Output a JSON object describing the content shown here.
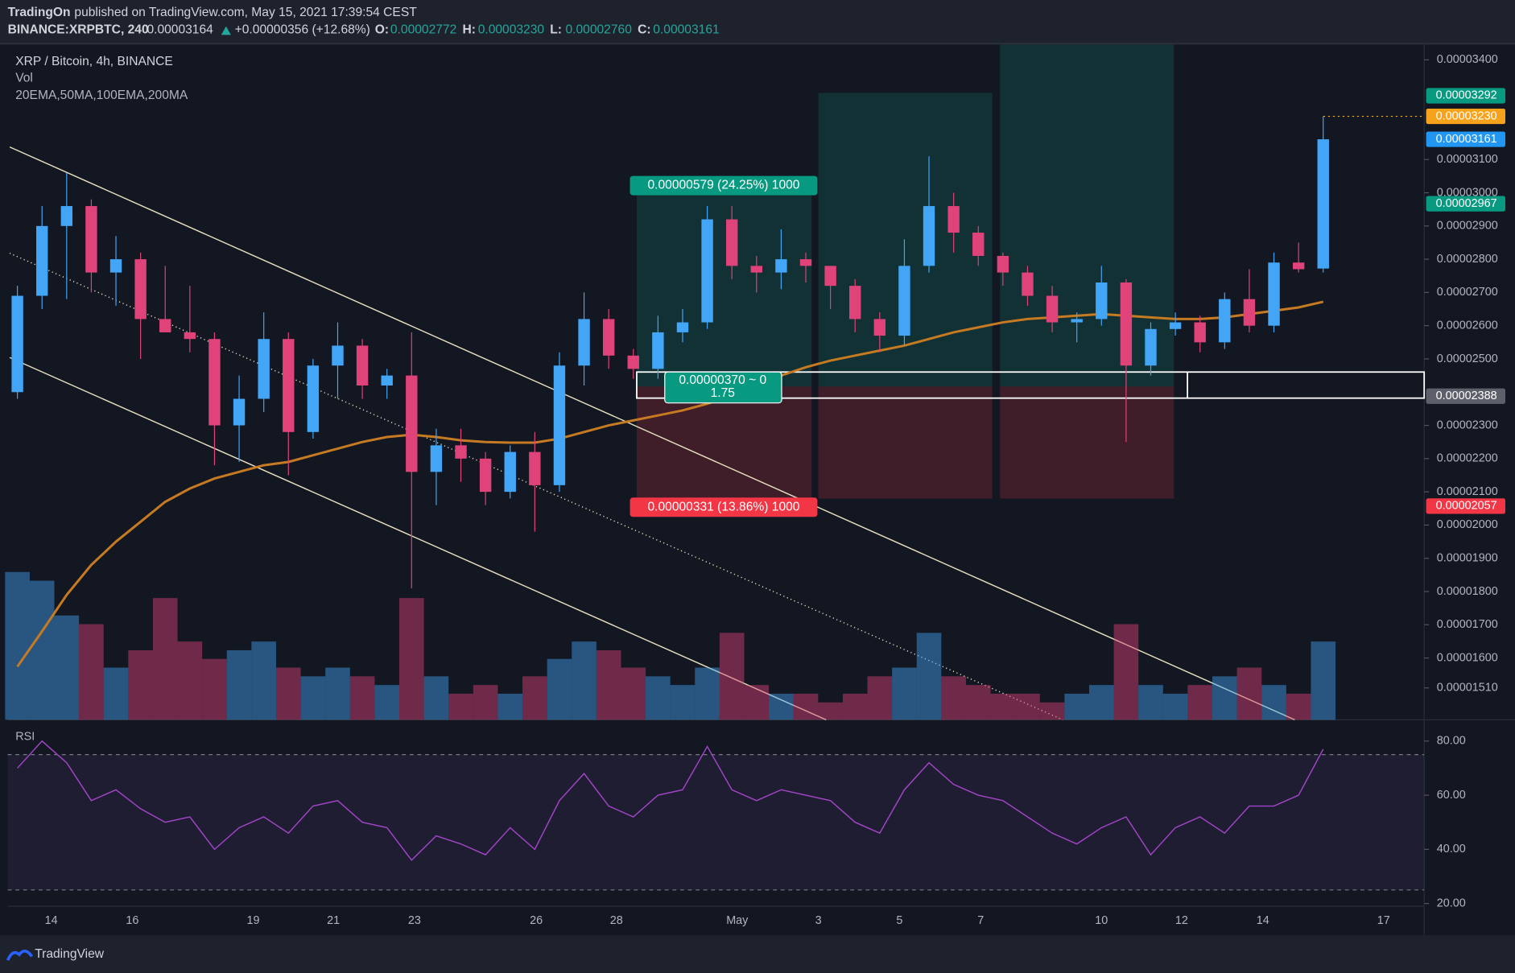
{
  "header": {
    "publisher": "TradingOn",
    "published": "published on TradingView.com, May 15, 2021 17:39:54 CEST",
    "symbol": "BINANCE:XRPBTC, 240",
    "last": "0.00003164",
    "change": "+0.00000356 (+12.68%)",
    "ohlc": [
      {
        "label": "O:",
        "value": "0.00002772"
      },
      {
        "label": "H:",
        "value": "0.00003230"
      },
      {
        "label": "L:",
        "value": "0.00002760"
      },
      {
        "label": "C:",
        "value": "0.00003161"
      }
    ]
  },
  "footer": "TradingView",
  "chart_data": {
    "type": "candlestick",
    "legend_lines": [
      "XRP / Bitcoin, 4h, BINANCE",
      "Vol",
      "20EMA,50MA,100EMA,200MA"
    ],
    "up_color": "#42a5f5",
    "down_color": "#e0427a",
    "ema_color": "#c67a22",
    "rsi_color": "#a445c8",
    "open": [
      2.4e-05,
      2.69e-05,
      2.9e-05,
      2.96e-05,
      2.76e-05,
      2.8e-05,
      2.62e-05,
      2.58e-05,
      2.56e-05,
      2.3e-05,
      2.38e-05,
      2.56e-05,
      2.28e-05,
      2.48e-05,
      2.54e-05,
      2.42e-05,
      2.45e-05,
      2.16e-05,
      2.24e-05,
      2.2e-05,
      2.1e-05,
      2.22e-05,
      2.12e-05,
      2.48e-05,
      2.62e-05,
      2.51e-05,
      2.47e-05,
      2.58e-05,
      2.61e-05,
      2.92e-05,
      2.78e-05,
      2.76e-05,
      2.8e-05,
      2.78e-05,
      2.72e-05,
      2.62e-05,
      2.57e-05,
      2.78e-05,
      2.96e-05,
      2.88e-05,
      2.81e-05,
      2.76e-05,
      2.69e-05,
      2.61e-05,
      2.62e-05,
      2.73e-05,
      2.48e-05,
      2.59e-05,
      2.61e-05,
      2.55e-05,
      2.68e-05,
      2.6e-05,
      2.79e-05,
      2.772e-05
    ],
    "high": [
      2.72e-05,
      2.96e-05,
      3.06e-05,
      2.98e-05,
      2.87e-05,
      2.82e-05,
      2.78e-05,
      2.72e-05,
      2.58e-05,
      2.45e-05,
      2.64e-05,
      2.58e-05,
      2.5e-05,
      2.61e-05,
      2.56e-05,
      2.47e-05,
      2.58e-05,
      2.29e-05,
      2.29e-05,
      2.22e-05,
      2.24e-05,
      2.28e-05,
      2.52e-05,
      2.7e-05,
      2.65e-05,
      2.53e-05,
      2.63e-05,
      2.65e-05,
      2.96e-05,
      2.96e-05,
      2.81e-05,
      2.89e-05,
      2.82e-05,
      2.78e-05,
      2.74e-05,
      2.64e-05,
      2.86e-05,
      3.11e-05,
      3e-05,
      2.9e-05,
      2.82e-05,
      2.78e-05,
      2.72e-05,
      2.64e-05,
      2.78e-05,
      2.74e-05,
      2.61e-05,
      2.64e-05,
      2.63e-05,
      2.7e-05,
      2.77e-05,
      2.82e-05,
      2.85e-05,
      3.23e-05
    ],
    "low": [
      2.38e-05,
      2.65e-05,
      2.68e-05,
      2.7e-05,
      2.66e-05,
      2.5e-05,
      2.58e-05,
      2.52e-05,
      2.18e-05,
      2.19e-05,
      2.34e-05,
      2.15e-05,
      2.26e-05,
      2.38e-05,
      2.38e-05,
      2.38e-05,
      1.81e-05,
      2.06e-05,
      2.13e-05,
      2.06e-05,
      2.08e-05,
      1.98e-05,
      2.1e-05,
      2.42e-05,
      2.47e-05,
      2.44e-05,
      2.44e-05,
      2.55e-05,
      2.59e-05,
      2.74e-05,
      2.7e-05,
      2.71e-05,
      2.73e-05,
      2.65e-05,
      2.58e-05,
      2.52e-05,
      2.54e-05,
      2.76e-05,
      2.82e-05,
      2.78e-05,
      2.72e-05,
      2.66e-05,
      2.58e-05,
      2.55e-05,
      2.6e-05,
      2.25e-05,
      2.45e-05,
      2.57e-05,
      2.52e-05,
      2.53e-05,
      2.58e-05,
      2.58e-05,
      2.76e-05,
      2.76e-05
    ],
    "close": [
      2.69e-05,
      2.9e-05,
      2.96e-05,
      2.76e-05,
      2.8e-05,
      2.62e-05,
      2.58e-05,
      2.56e-05,
      2.3e-05,
      2.38e-05,
      2.56e-05,
      2.28e-05,
      2.48e-05,
      2.54e-05,
      2.42e-05,
      2.45e-05,
      2.16e-05,
      2.24e-05,
      2.2e-05,
      2.1e-05,
      2.22e-05,
      2.12e-05,
      2.48e-05,
      2.62e-05,
      2.51e-05,
      2.47e-05,
      2.58e-05,
      2.61e-05,
      2.92e-05,
      2.78e-05,
      2.76e-05,
      2.8e-05,
      2.78e-05,
      2.72e-05,
      2.62e-05,
      2.57e-05,
      2.78e-05,
      2.96e-05,
      2.88e-05,
      2.81e-05,
      2.76e-05,
      2.69e-05,
      2.61e-05,
      2.62e-05,
      2.73e-05,
      2.48e-05,
      2.59e-05,
      2.61e-05,
      2.55e-05,
      2.68e-05,
      2.6e-05,
      2.79e-05,
      2.77e-05,
      3.161e-05
    ],
    "ema": [
      1.574e-05,
      1.68e-05,
      1.79e-05,
      1.88e-05,
      1.95e-05,
      2.01e-05,
      2.07e-05,
      2.11e-05,
      2.14e-05,
      2.16e-05,
      2.18e-05,
      2.19e-05,
      2.21e-05,
      2.23e-05,
      2.25e-05,
      2.265e-05,
      2.272e-05,
      2.265e-05,
      2.255e-05,
      2.25e-05,
      2.248e-05,
      2.248e-05,
      2.26e-05,
      2.28e-05,
      2.3e-05,
      2.315e-05,
      2.33e-05,
      2.345e-05,
      2.365e-05,
      2.39e-05,
      2.42e-05,
      2.45e-05,
      2.475e-05,
      2.495e-05,
      2.51e-05,
      2.525e-05,
      2.54e-05,
      2.56e-05,
      2.58e-05,
      2.595e-05,
      2.61e-05,
      2.62e-05,
      2.625e-05,
      2.63e-05,
      2.635e-05,
      2.63e-05,
      2.625e-05,
      2.62e-05,
      2.62e-05,
      2.625e-05,
      2.635e-05,
      2.645e-05,
      2.655e-05,
      2.672e-05
    ],
    "volume": [
      85,
      80,
      60,
      55,
      30,
      40,
      70,
      45,
      35,
      40,
      45,
      30,
      25,
      30,
      25,
      20,
      70,
      25,
      15,
      20,
      15,
      25,
      35,
      45,
      40,
      30,
      25,
      20,
      30,
      50,
      20,
      15,
      15,
      10,
      15,
      25,
      30,
      50,
      25,
      20,
      15,
      15,
      10,
      15,
      20,
      55,
      20,
      15,
      20,
      25,
      30,
      20,
      15,
      45
    ],
    "rsi": [
      70,
      80,
      72,
      58,
      62,
      55,
      50,
      52,
      40,
      48,
      52,
      46,
      56,
      58,
      50,
      48,
      36,
      45,
      42,
      38,
      48,
      40,
      58,
      68,
      56,
      52,
      60,
      62,
      78,
      62,
      58,
      62,
      60,
      58,
      50,
      46,
      62,
      72,
      64,
      60,
      58,
      52,
      46,
      42,
      48,
      52,
      38,
      48,
      52,
      46,
      56,
      56,
      60,
      77
    ],
    "ylim": [
      1.414e-05,
      3.446e-05
    ],
    "yticks": [
      {
        "value": 3.4e-05,
        "label": "0.00003400"
      },
      {
        "value": 3.1e-05,
        "label": "0.00003100"
      },
      {
        "value": 3e-05,
        "label": "0.00003000"
      },
      {
        "value": 2.9e-05,
        "label": "0.00002900"
      },
      {
        "value": 2.8e-05,
        "label": "0.00002800"
      },
      {
        "value": 2.7e-05,
        "label": "0.00002700"
      },
      {
        "value": 2.6e-05,
        "label": "0.00002600"
      },
      {
        "value": 2.5e-05,
        "label": "0.00002500"
      },
      {
        "value": 2.3e-05,
        "label": "0.00002300"
      },
      {
        "value": 2.2e-05,
        "label": "0.00002200"
      },
      {
        "value": 2.1e-05,
        "label": "0.00002100"
      },
      {
        "value": 2e-05,
        "label": "0.00002000"
      },
      {
        "value": 1.9e-05,
        "label": "0.00001900"
      },
      {
        "value": 1.8e-05,
        "label": "0.00001800"
      },
      {
        "value": 1.7e-05,
        "label": "0.00001700"
      },
      {
        "value": 1.6e-05,
        "label": "0.00001600"
      },
      {
        "value": 1.51e-05,
        "label": "0.00001510"
      }
    ],
    "price_markers": [
      {
        "value": 3.292e-05,
        "label": "0.00003292",
        "color": "#089981"
      },
      {
        "value": 3.23e-05,
        "label": "0.00003230",
        "color": "#f7a21b"
      },
      {
        "value": 3.161e-05,
        "label": "0.00003161",
        "color": "#2196f3"
      },
      {
        "value": 2.967e-05,
        "label": "0.00002967",
        "color": "#089981"
      },
      {
        "value": 2.388e-05,
        "label": "0.00002388",
        "color": "#5d606b"
      },
      {
        "value": 2.057e-05,
        "label": "0.00002057",
        "color": "#f23645"
      }
    ],
    "position": {
      "target_label": "0.00000579 (24.25%) 1000",
      "entry_label": "0.00000370 ~ 0",
      "ratio_label": "1.75",
      "stop_label": "0.00000331 (13.86%) 1000"
    },
    "rsi_title": "RSI",
    "rsi_lim": [
      19,
      87.5
    ],
    "rsi_bands": [
      25,
      75
    ],
    "rsi_ticks": [
      {
        "value": 80,
        "label": "80.00"
      },
      {
        "value": 60,
        "label": "60.00"
      },
      {
        "value": 40,
        "label": "40.00"
      },
      {
        "value": 20,
        "label": "20.00"
      }
    ],
    "x_labels": [
      "14",
      "16",
      "19",
      "21",
      "23",
      "26",
      "28",
      "May",
      "3",
      "5",
      "7",
      "10",
      "12",
      "14",
      "17"
    ]
  }
}
